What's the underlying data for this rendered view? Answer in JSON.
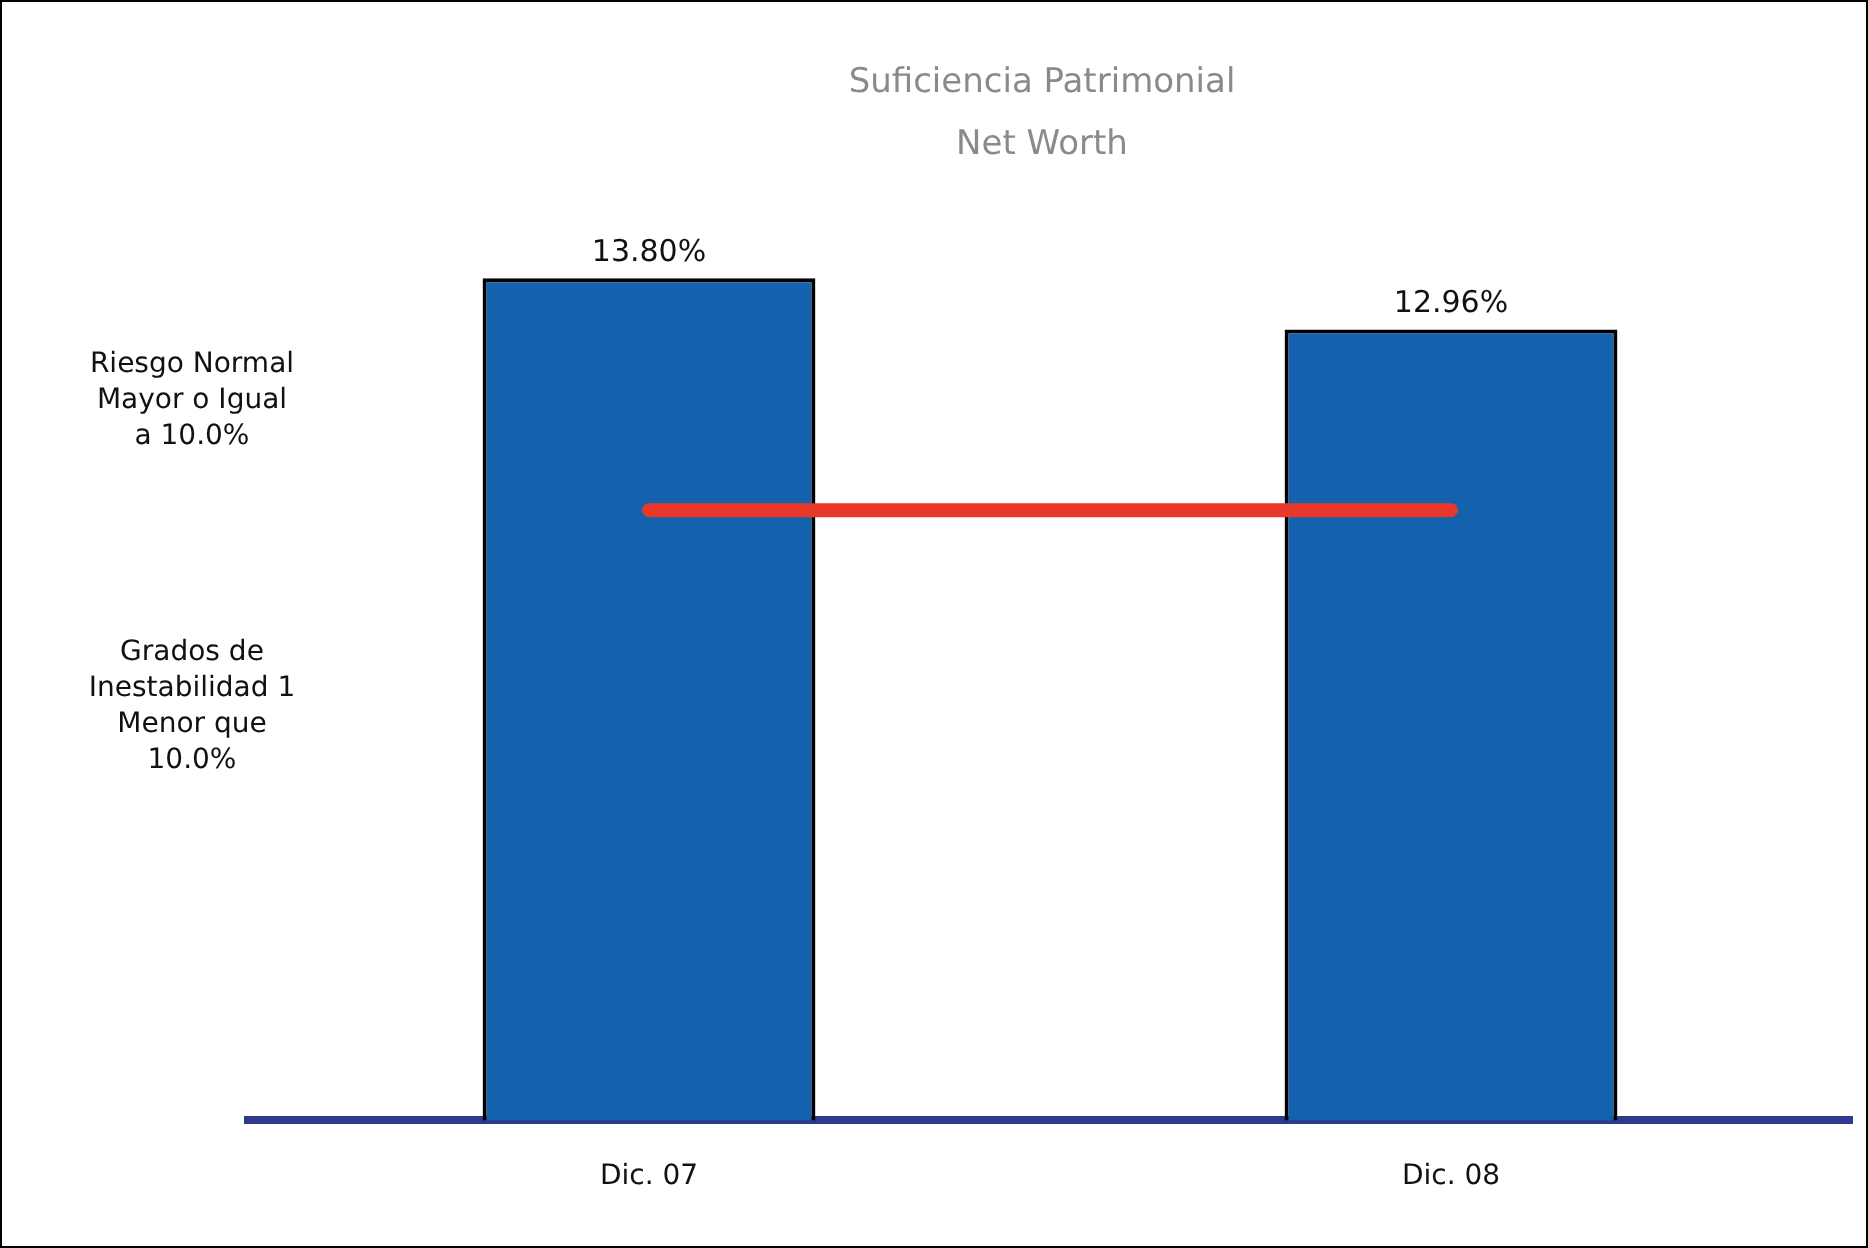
{
  "chart_data": {
    "type": "bar",
    "title": "Suficiencia Patrimonial",
    "subtitle": "Net Worth",
    "categories": [
      "Dic. 07",
      "Dic. 08"
    ],
    "values": [
      13.8,
      12.96
    ],
    "value_labels": [
      "13.80%",
      "12.96%"
    ],
    "color": "#1462ae",
    "ref_lines": [
      {
        "axis": "y",
        "value": 10.0,
        "color": "#e8382a"
      }
    ],
    "annotations": [
      "Riesgo Normal\nMayor o Igual\na 10.0%",
      "Grados de\nInestabilidad 1\nMenor que\n10.0%"
    ],
    "relative": false,
    "legend": false,
    "grid": false
  }
}
